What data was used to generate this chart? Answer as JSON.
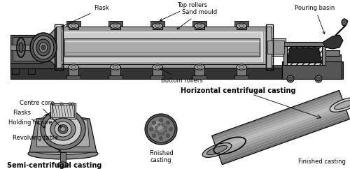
{
  "background_color": "#ffffff",
  "labels": {
    "top_rollers": "Top rollers",
    "flask": "Flask",
    "sand_mould": "Sand mould",
    "pouring_basin": "Pouring basin",
    "bottom_rollers": "Bottom rollers",
    "horizontal_centrifugal": "Horizontal centrifugal casting",
    "centre_core": "Centre core",
    "flasks": "Flasks",
    "holding_fixture": "Holding fixture",
    "revolving_table": "Revolving table",
    "semi_centrifugal": "Semi-centrifugal casting",
    "finished_casting_1": "Finished\ncasting",
    "finished_casting_2": "Finished casting"
  },
  "figsize": [
    5.0,
    2.42
  ],
  "dpi": 100,
  "arrow_style": {
    "arrowstyle": "->",
    "color": "black",
    "lw": 0.6
  },
  "label_fontsize": 6,
  "bold_fontsize": 7
}
